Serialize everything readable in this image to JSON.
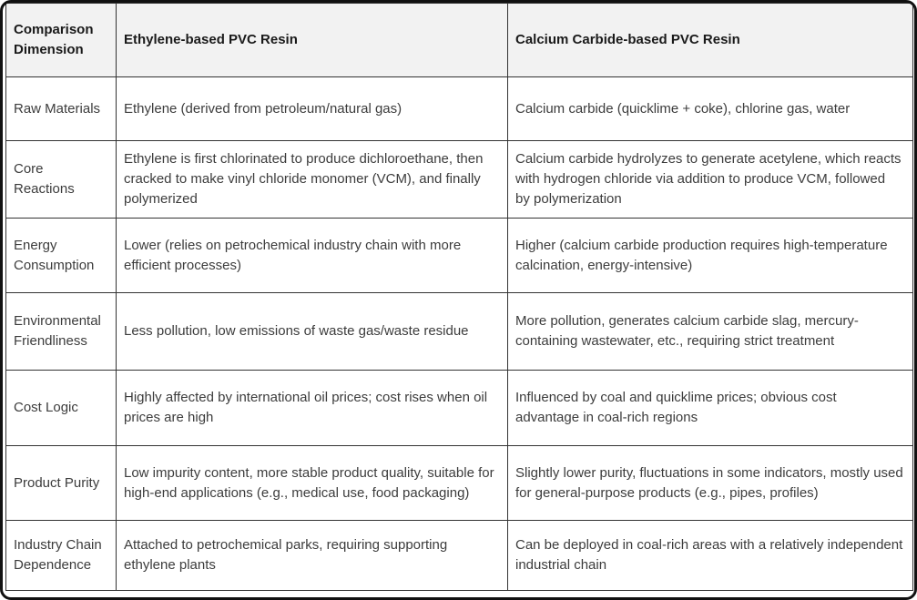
{
  "table": {
    "title_semantic": "PVC Resin production route comparison table",
    "headers": [
      "Comparison Dimension",
      "Ethylene-based PVC Resin",
      "Calcium Carbide-based PVC Resin"
    ],
    "rows": [
      {
        "dimension": "Raw Materials",
        "ethylene": "Ethylene (derived from petroleum/natural gas)",
        "carbide": "Calcium carbide (quicklime + coke), chlorine gas, water"
      },
      {
        "dimension": "Core Reactions",
        "ethylene": "Ethylene is first chlorinated to produce dichloroethane, then cracked to make vinyl chloride monomer (VCM), and finally polymerized",
        "carbide": "Calcium carbide hydrolyzes to generate acetylene, which reacts with hydrogen chloride via addition to produce VCM, followed by polymerization"
      },
      {
        "dimension": "Energy Consumption",
        "ethylene": "Lower (relies on petrochemical industry chain with more efficient processes)",
        "carbide": "Higher (calcium carbide production requires high-temperature calcination, energy-intensive)"
      },
      {
        "dimension": "Environmental Friendliness",
        "ethylene": "Less pollution, low emissions of waste gas/waste residue",
        "carbide": "More pollution, generates calcium carbide slag, mercury-containing wastewater, etc., requiring strict treatment"
      },
      {
        "dimension": "Cost Logic",
        "ethylene": "Highly affected by international oil prices; cost rises when oil prices are high",
        "carbide": "Influenced by coal and quicklime prices; obvious cost advantage in coal-rich regions"
      },
      {
        "dimension": "Product Purity",
        "ethylene": "Low impurity content, more stable product quality, suitable for high-end applications (e.g., medical use, food packaging)",
        "carbide": "Slightly lower purity, fluctuations in some indicators, mostly used for general-purpose products (e.g., pipes, profiles)"
      },
      {
        "dimension": "Industry Chain Dependence",
        "ethylene": "Attached to petrochemical parks, requiring supporting ethylene plants",
        "carbide": "Can be deployed in coal-rich areas with a relatively independent industrial chain"
      }
    ],
    "colors": {
      "header_bg": "#f2f2f2",
      "grid_border": "#333333",
      "outer_frame": "#111111",
      "body_text": "#3c3c3c",
      "header_text": "#1a1a1a"
    }
  }
}
